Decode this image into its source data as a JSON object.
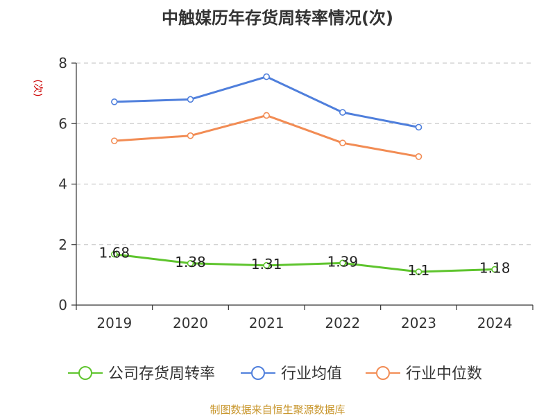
{
  "chart_data": {
    "type": "line",
    "title": "中触媒历年存货周转率情况(次)",
    "ylabel": "(次)",
    "ylim": [
      0,
      8
    ],
    "yticks": [
      0,
      2,
      4,
      6,
      8
    ],
    "categories": [
      "2019",
      "2020",
      "2021",
      "2022",
      "2023",
      "2024"
    ],
    "grid": true,
    "legend_position": "bottom",
    "series": [
      {
        "name": "公司存货周转率",
        "color": "#5ec42d",
        "values": [
          1.68,
          1.38,
          1.31,
          1.39,
          1.1,
          1.18
        ],
        "labels": [
          "1.68",
          "1.38",
          "1.31",
          "1.39",
          "1.1",
          "1.18"
        ]
      },
      {
        "name": "行业均值",
        "color": "#4f7fdc",
        "values": [
          6.72,
          6.8,
          7.55,
          6.37,
          5.88,
          null
        ]
      },
      {
        "name": "行业中位数",
        "color": "#f28c54",
        "values": [
          5.43,
          5.6,
          6.27,
          5.36,
          4.91,
          null
        ]
      }
    ]
  },
  "source": {
    "text": "制图数据来自恒生聚源数据库",
    "color": "#c8962c"
  },
  "colors": {
    "ylabel": "#cc0000",
    "axis": "#333333",
    "grid": "#cccccc"
  }
}
